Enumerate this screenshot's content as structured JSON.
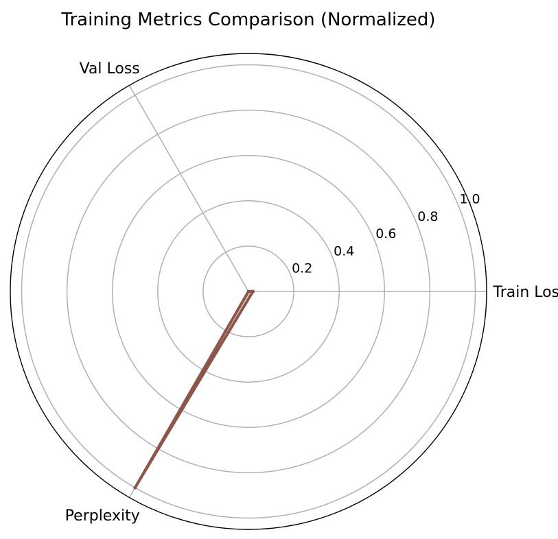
{
  "chart_data": {
    "type": "radar",
    "title": "Training Metrics Comparison (Normalized)",
    "axes": [
      "Train Loss",
      "Val Loss",
      "Perplexity"
    ],
    "r_ticks": [
      "0.2",
      "0.4",
      "0.6",
      "0.8",
      "1.0"
    ],
    "r_tick_values": [
      0.2,
      0.4,
      0.6,
      0.8,
      1.0
    ],
    "rlim": [
      0,
      1.05
    ],
    "grid": true,
    "series": [
      {
        "values": [
          0.02,
          0.0,
          1.0
        ],
        "color": "#8c564b"
      }
    ]
  }
}
